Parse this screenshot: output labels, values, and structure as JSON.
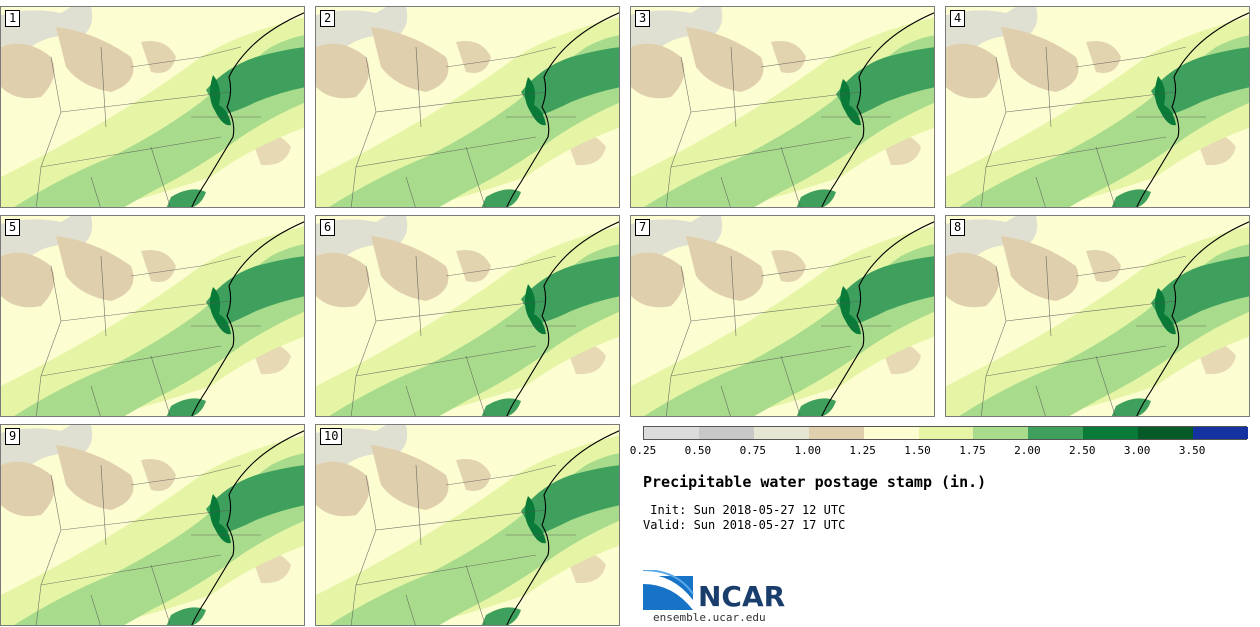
{
  "panels": [
    {
      "label": "1"
    },
    {
      "label": "2"
    },
    {
      "label": "3"
    },
    {
      "label": "4"
    },
    {
      "label": "5"
    },
    {
      "label": "6"
    },
    {
      "label": "7"
    },
    {
      "label": "8"
    },
    {
      "label": "9"
    },
    {
      "label": "10"
    }
  ],
  "colorbar": {
    "ticks": [
      "0.25",
      "0.50",
      "0.75",
      "1.00",
      "1.25",
      "1.50",
      "1.75",
      "2.00",
      "2.50",
      "3.00",
      "3.50"
    ],
    "colors": [
      "#dcdcdc",
      "#c8c8c8",
      "#e6e6d2",
      "#e0cfac",
      "#fdfdd2",
      "#e6f5a5",
      "#a8dc8c",
      "#3ea05c",
      "#0a7a38",
      "#055a28",
      "#1432a0"
    ]
  },
  "map_colors": {
    "background": "#fdfdd2",
    "light_green": "#e6f5a5",
    "mid_green": "#a8dc8c",
    "green": "#3ea05c",
    "dark_green": "#0a7a38",
    "tan": "#e0cfac",
    "gray": "#d2d2d2"
  },
  "title": "Precipitable water postage stamp (in.)",
  "init": " Init: Sun 2018-05-27 12 UTC",
  "valid": "Valid: Sun 2018-05-27 17 UTC",
  "logo": {
    "text": "NCAR",
    "url": "ensemble.ucar.edu"
  }
}
